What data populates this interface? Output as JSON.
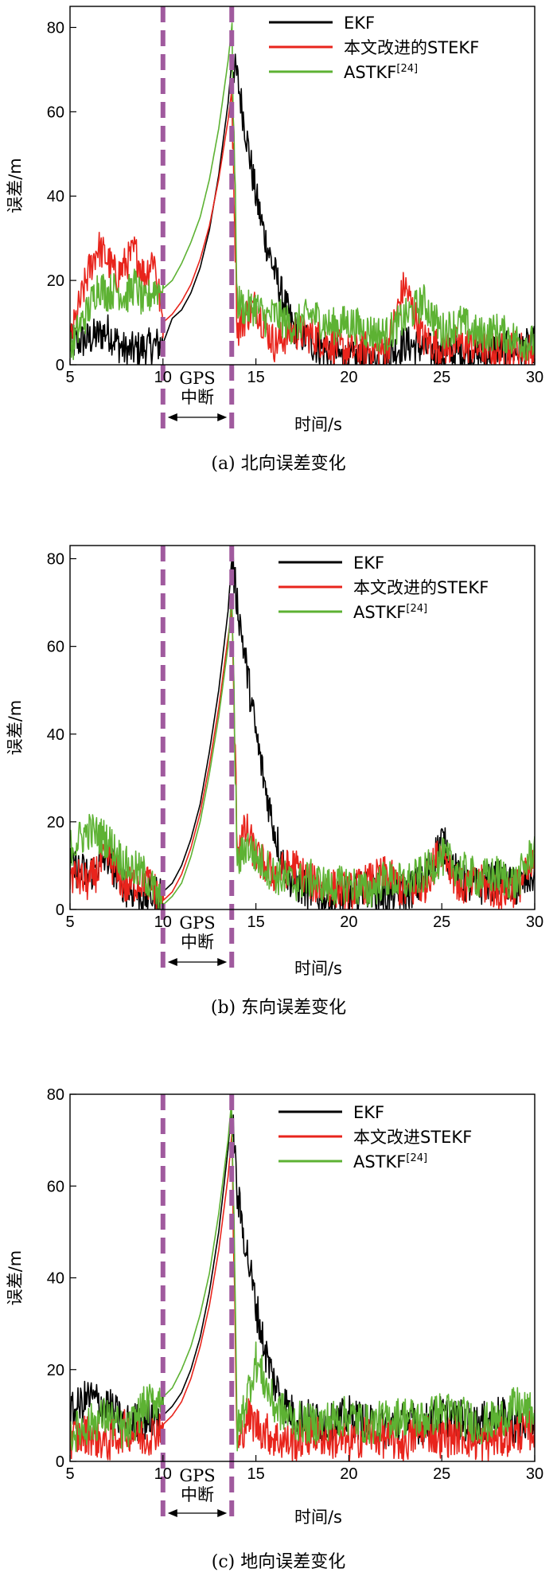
{
  "chart_data": [
    {
      "type": "line",
      "caption": "(a) 北向误差变化",
      "xlabel": "时间/s",
      "ylabel": "误差/m",
      "xlim": [
        5,
        30
      ],
      "ylim": [
        0,
        85
      ],
      "xticks": [
        5,
        10,
        15,
        20,
        25,
        30
      ],
      "yticks": [
        0,
        20,
        40,
        60,
        80
      ],
      "gps_outage": {
        "start": 10,
        "end": 13.7,
        "label_line1": "GPS",
        "label_line2": "中断"
      },
      "series": [
        {
          "name": "EKF",
          "color": "#000000",
          "x": [
            5,
            6,
            7,
            8,
            9,
            10,
            10.5,
            11,
            11.5,
            12,
            12.5,
            13,
            13.5,
            13.7,
            14,
            14.5,
            15,
            15.5,
            16,
            16.5,
            17,
            18,
            19,
            20,
            21,
            22,
            23,
            24,
            25,
            26,
            27,
            28,
            29,
            30
          ],
          "y": [
            5,
            6,
            8,
            3,
            4,
            5,
            11,
            13,
            17,
            23,
            32,
            45,
            62,
            72,
            68,
            54,
            40,
            30,
            22,
            15,
            9,
            5,
            3,
            1,
            1,
            2,
            5,
            4,
            2,
            3,
            2,
            4,
            3,
            5
          ]
        },
        {
          "name": "本文改进的STEKF",
          "color": "#e8241c",
          "x": [
            5,
            5.5,
            6,
            6.5,
            7,
            7.5,
            8,
            8.5,
            9,
            9.5,
            10,
            10.5,
            11,
            11.5,
            12,
            12.5,
            13,
            13.5,
            13.7,
            14,
            14.5,
            15,
            15.5,
            16,
            17,
            18,
            19,
            20,
            21,
            22,
            23,
            24,
            25,
            26,
            27,
            28,
            29,
            30
          ],
          "y": [
            5,
            14,
            22,
            28,
            25,
            21,
            24,
            27,
            21,
            26,
            10,
            12,
            15,
            19,
            25,
            33,
            44,
            58,
            65,
            8,
            12,
            14,
            9,
            5,
            8,
            7,
            5,
            3,
            4,
            3,
            19,
            6,
            4,
            5,
            4,
            3,
            4,
            3
          ]
        },
        {
          "name": "ASTKF[24]",
          "color": "#5db233",
          "x": [
            5,
            5.5,
            6,
            6.5,
            7,
            7.5,
            8,
            8.5,
            9,
            9.5,
            10,
            10.5,
            11,
            11.5,
            12,
            12.5,
            13,
            13.5,
            13.7,
            14,
            14.5,
            15,
            15.5,
            16,
            17,
            18,
            19,
            20,
            21,
            22,
            23,
            24,
            25,
            26,
            27,
            28,
            29,
            30
          ],
          "y": [
            3,
            9,
            13,
            19,
            17,
            18,
            16,
            19,
            14,
            18,
            18,
            20,
            24,
            29,
            35,
            44,
            56,
            72,
            80,
            15,
            13,
            14,
            11,
            12,
            9,
            12,
            9,
            10,
            8,
            7,
            11,
            15,
            8,
            10,
            7,
            8,
            6,
            5
          ]
        }
      ]
    },
    {
      "type": "line",
      "caption": "(b) 东向误差变化",
      "xlabel": "时间/s",
      "ylabel": "误差/m",
      "xlim": [
        5,
        30
      ],
      "ylim": [
        0,
        83
      ],
      "xticks": [
        5,
        10,
        15,
        20,
        25,
        30
      ],
      "yticks": [
        0,
        20,
        40,
        60,
        80
      ],
      "gps_outage": {
        "start": 10,
        "end": 13.7,
        "label_line1": "GPS",
        "label_line2": "中断"
      },
      "series": [
        {
          "name": "EKF",
          "color": "#000000",
          "x": [
            5,
            6,
            7,
            8,
            9,
            10,
            10.5,
            11,
            11.5,
            12,
            12.5,
            13,
            13.5,
            13.7,
            14,
            14.5,
            15,
            15.5,
            16,
            16.5,
            17,
            18,
            19,
            20,
            21,
            22,
            23,
            24,
            25,
            26,
            27,
            28,
            29,
            30
          ],
          "y": [
            10,
            8,
            12,
            5,
            3,
            4,
            6,
            10,
            16,
            24,
            36,
            50,
            68,
            80,
            70,
            55,
            40,
            28,
            18,
            10,
            6,
            4,
            2,
            3,
            5,
            3,
            4,
            6,
            16,
            6,
            5,
            7,
            5,
            8
          ]
        },
        {
          "name": "本文改进的STEKF",
          "color": "#e8241c",
          "x": [
            5,
            6,
            7,
            8,
            9,
            10,
            10.5,
            11,
            11.5,
            12,
            12.5,
            13,
            13.5,
            13.7,
            14,
            14.5,
            15,
            16,
            17,
            18,
            19,
            20,
            21,
            22,
            23,
            24,
            25,
            26,
            27,
            28,
            29,
            30
          ],
          "y": [
            8,
            6,
            12,
            5,
            7,
            2,
            4,
            8,
            14,
            22,
            33,
            46,
            62,
            68,
            15,
            18,
            12,
            8,
            10,
            6,
            5,
            4,
            6,
            8,
            4,
            5,
            14,
            5,
            6,
            4,
            5,
            10
          ]
        },
        {
          "name": "ASTKF[24]",
          "color": "#5db233",
          "x": [
            5,
            6,
            7,
            8,
            9,
            10,
            10.5,
            11,
            11.5,
            12,
            12.5,
            13,
            13.5,
            13.7,
            14,
            14.5,
            15,
            16,
            17,
            18,
            19,
            20,
            21,
            22,
            23,
            24,
            25,
            26,
            27,
            28,
            29,
            30
          ],
          "y": [
            14,
            18,
            16,
            10,
            8,
            1,
            3,
            6,
            12,
            20,
            31,
            44,
            60,
            72,
            10,
            15,
            12,
            8,
            6,
            7,
            5,
            6,
            4,
            7,
            6,
            8,
            12,
            9,
            7,
            8,
            6,
            14
          ]
        }
      ]
    },
    {
      "type": "line",
      "caption": "(c) 地向误差变化",
      "xlabel": "时间/s",
      "ylabel": "误差/m",
      "xlim": [
        5,
        30
      ],
      "ylim": [
        0,
        80
      ],
      "xticks": [
        5,
        10,
        15,
        20,
        25,
        30
      ],
      "yticks": [
        0,
        20,
        40,
        60,
        80
      ],
      "gps_outage": {
        "start": 10,
        "end": 13.7,
        "label_line1": "GPS",
        "label_line2": "中断"
      },
      "series": [
        {
          "name": "EKF",
          "color": "#000000",
          "x": [
            5,
            6,
            7,
            8,
            9,
            10,
            10.5,
            11,
            11.5,
            12,
            12.5,
            13,
            13.5,
            13.7,
            14,
            14.5,
            15,
            15.5,
            16,
            16.5,
            17,
            18,
            19,
            20,
            21,
            22,
            23,
            24,
            25,
            26,
            27,
            28,
            29,
            30
          ],
          "y": [
            10,
            14,
            12,
            8,
            9,
            10,
            12,
            15,
            20,
            27,
            37,
            50,
            68,
            78,
            58,
            46,
            34,
            24,
            17,
            13,
            10,
            9,
            8,
            10,
            8,
            7,
            9,
            8,
            10,
            9,
            8,
            10,
            8,
            9
          ]
        },
        {
          "name": "本文改进STEKF",
          "color": "#e8241c",
          "x": [
            5,
            6,
            7,
            8,
            9,
            10,
            10.5,
            11,
            11.5,
            12,
            12.5,
            13,
            13.5,
            13.7,
            14,
            14.5,
            15,
            16,
            17,
            18,
            19,
            20,
            21,
            22,
            23,
            24,
            25,
            26,
            27,
            28,
            29,
            30
          ],
          "y": [
            5,
            6,
            4,
            7,
            5,
            8,
            10,
            13,
            18,
            25,
            34,
            46,
            62,
            71,
            2,
            10,
            8,
            5,
            4,
            6,
            5,
            4,
            6,
            5,
            4,
            7,
            5,
            6,
            4,
            5,
            6,
            7
          ]
        },
        {
          "name": "ASTKF[24]",
          "color": "#5db233",
          "x": [
            5,
            6,
            7,
            8,
            9,
            10,
            10.5,
            11,
            11.5,
            12,
            12.5,
            13,
            13.5,
            13.7,
            14,
            14.5,
            15,
            16,
            17,
            18,
            19,
            20,
            21,
            22,
            23,
            24,
            25,
            26,
            27,
            28,
            29,
            30
          ],
          "y": [
            6,
            8,
            10,
            6,
            12,
            14,
            16,
            20,
            25,
            32,
            41,
            54,
            70,
            79,
            6,
            14,
            22,
            12,
            9,
            8,
            9,
            10,
            8,
            9,
            10,
            9,
            11,
            10,
            8,
            9,
            12,
            10
          ]
        }
      ]
    }
  ]
}
